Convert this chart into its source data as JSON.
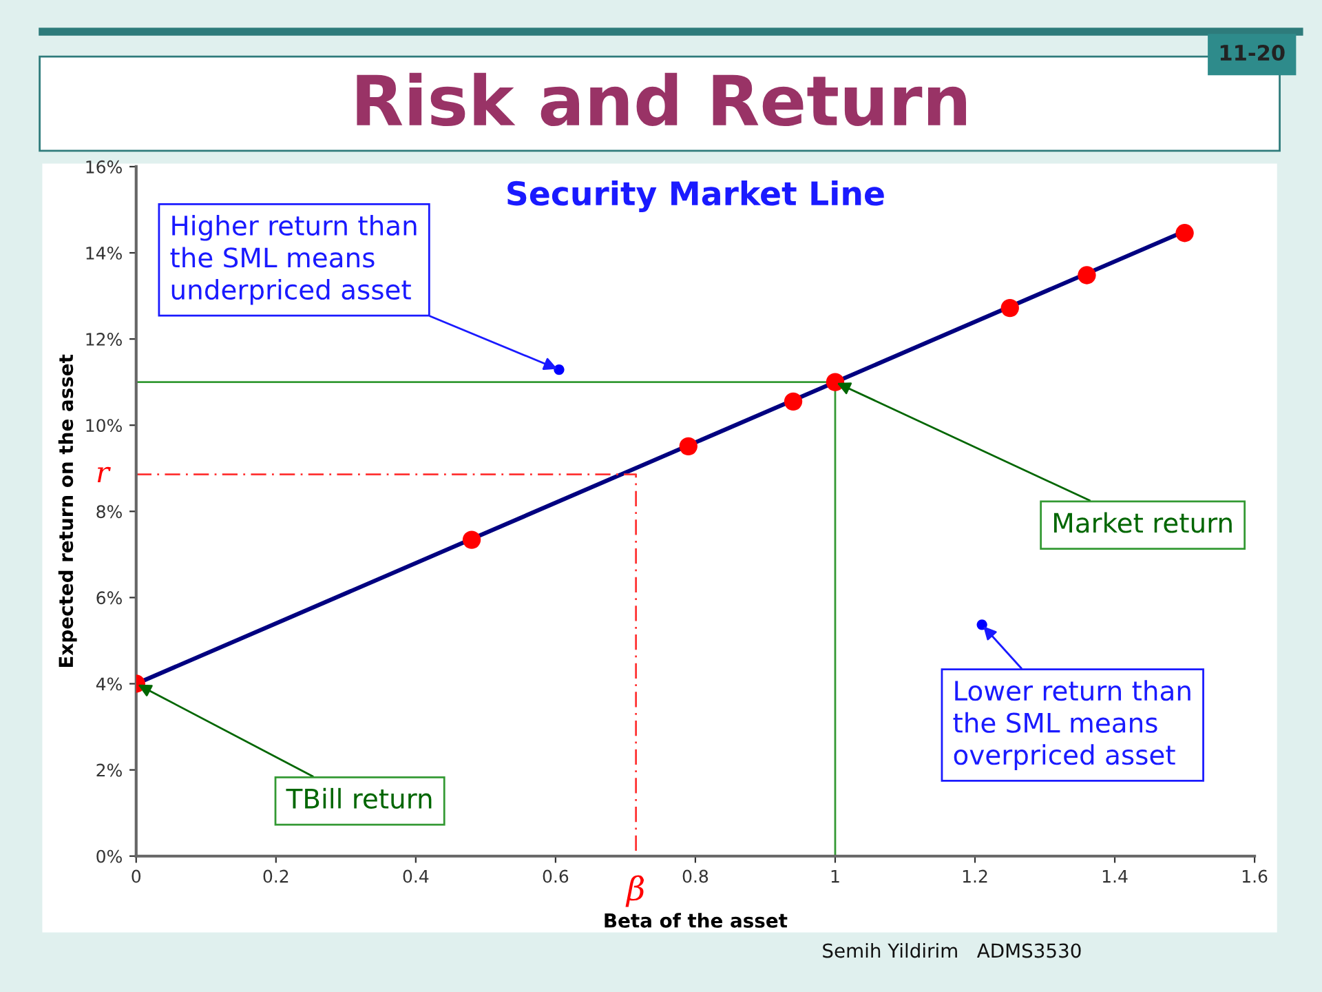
{
  "chart_data": {
    "type": "scatter",
    "title": "Risk and Return",
    "subtitle": "Security Market Line",
    "xlabel": "Beta of the asset",
    "ylabel": "Expected return on the asset",
    "xlim": [
      0,
      1.6
    ],
    "xticks": [
      0,
      0.2,
      0.4,
      0.6,
      0.8,
      1,
      1.2,
      1.4,
      1.6
    ],
    "ylim": [
      0,
      16
    ],
    "yticks": [
      {
        "value": 0,
        "label": "0%"
      },
      {
        "value": 2,
        "label": "2%"
      },
      {
        "value": 4,
        "label": "4%"
      },
      {
        "value": 6,
        "label": "6%"
      },
      {
        "value": 8,
        "label": "8%"
      },
      {
        "value": 10,
        "label": "10%"
      },
      {
        "value": 12,
        "label": "12%"
      },
      {
        "value": 14,
        "label": "14%"
      },
      {
        "value": 16,
        "label": "16%"
      }
    ],
    "grid": false,
    "series": [
      {
        "type": "line",
        "color": "#000080",
        "x": [
          0,
          1.5
        ],
        "values": [
          4,
          14.5
        ],
        "marker": "none",
        "line_style": "solid"
      },
      {
        "type": "line",
        "color": "#339933",
        "x": [
          0,
          1,
          1
        ],
        "values": [
          11,
          11,
          0
        ],
        "marker": "none",
        "line_style": "solid"
      },
      {
        "type": "line",
        "color": "#ff3333",
        "x": [
          0,
          0.715,
          0.715
        ],
        "values": [
          8.86,
          8.86,
          0
        ],
        "marker": "none",
        "line_style": "dashed"
      },
      {
        "color": "#ff0000",
        "x": [
          0,
          0.48,
          0.79,
          0.94,
          1,
          1.25,
          1.36,
          1.5
        ],
        "values": [
          4,
          7.34,
          9.51,
          10.55,
          11,
          12.72,
          13.48,
          14.46
        ],
        "marker": "circle"
      },
      {
        "color": "#0000ff",
        "x": [
          0.605,
          1.21
        ],
        "values": [
          11.29,
          5.37
        ],
        "marker": "circle"
      }
    ],
    "annotations": [
      {
        "text": "Higher return than\nthe SML means\nunderpriced asset",
        "x": 0.605,
        "y": 11.29
      },
      {
        "text": "Market return",
        "x": 1,
        "y": 11
      },
      {
        "text": "TBill return",
        "x": 0,
        "y": 4
      },
      {
        "text": "Lower return than\nthe SML means\noverpriced asset",
        "x": 1.21,
        "y": 5.37
      },
      {
        "text": "r",
        "x": 0,
        "y": 8.86
      },
      {
        "text": "β",
        "x": 0.715,
        "y": 0
      },
      "11-20",
      "Semih Yildirim   ADMS3530"
    ]
  }
}
